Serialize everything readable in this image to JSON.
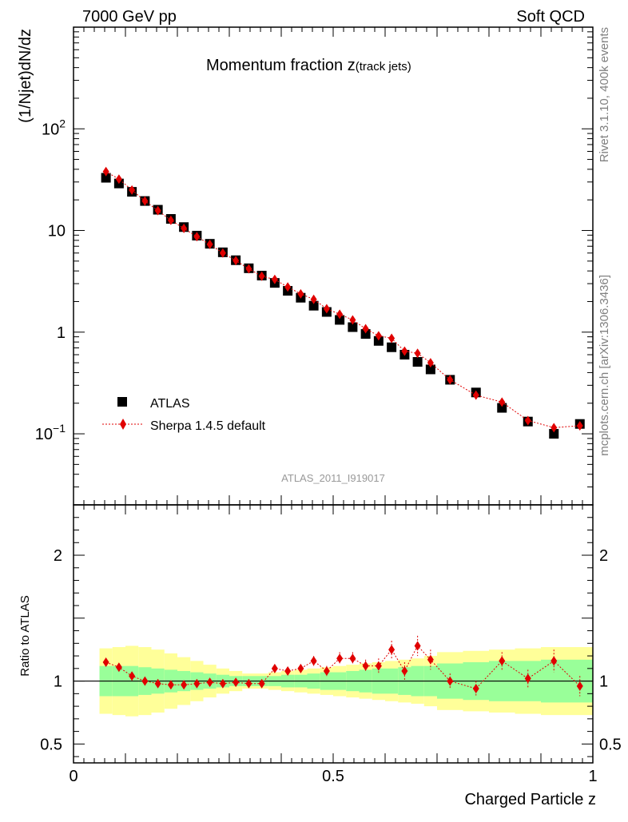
{
  "header": {
    "left": "7000 GeV pp",
    "right": "Soft QCD"
  },
  "side": {
    "rivet": "Rivet 3.1.10,  400k events",
    "mcplots": "mcplots.cern.ch [arXiv:1306.3436]"
  },
  "colors": {
    "data": "#000000",
    "mc": "#e00000",
    "band_outer": "#ffff99",
    "band_inner": "#99ff99",
    "axis": "#000000",
    "watermark": "#999999",
    "side_text": "#808080"
  },
  "chart_data": [
    {
      "type": "scatter",
      "name": "main",
      "title_main": "Momentum fraction z",
      "title_sub": "(track jets)",
      "ylabel": "(1/Njet)dN/dz",
      "yscale": "log",
      "ylim": [
        0.02,
        1000
      ],
      "xlim": [
        0,
        1
      ],
      "y_ticks": [
        {
          "value": 0.1,
          "base": "10",
          "exp": "−1"
        },
        {
          "value": 1,
          "base": "1",
          "exp": ""
        },
        {
          "value": 10,
          "base": "10",
          "exp": ""
        },
        {
          "value": 100,
          "base": "10",
          "exp": "2"
        }
      ],
      "watermark": "ATLAS_2011_I919017",
      "legend": [
        {
          "label": "ATLAS",
          "marker": "square"
        },
        {
          "label": "Sherpa 1.4.5 default",
          "marker": "diamond"
        }
      ],
      "x": [
        0.0625,
        0.0875,
        0.1125,
        0.1375,
        0.1625,
        0.1875,
        0.2125,
        0.2375,
        0.2625,
        0.2875,
        0.3125,
        0.3375,
        0.3625,
        0.3875,
        0.4125,
        0.4375,
        0.4625,
        0.4875,
        0.5125,
        0.5375,
        0.5625,
        0.5875,
        0.6125,
        0.6375,
        0.6625,
        0.6875,
        0.725,
        0.775,
        0.825,
        0.875,
        0.925,
        0.975
      ],
      "series": [
        {
          "name": "ATLAS",
          "values": [
            33,
            29,
            24,
            19.5,
            16,
            13,
            10.8,
            8.9,
            7.4,
            6.1,
            5.1,
            4.25,
            3.6,
            3.05,
            2.55,
            2.18,
            1.82,
            1.58,
            1.32,
            1.12,
            0.96,
            0.82,
            0.71,
            0.6,
            0.51,
            0.43,
            0.34,
            0.255,
            0.18,
            0.132,
            0.1,
            0.125
          ]
        },
        {
          "name": "Sherpa 1.4.5 default",
          "values": [
            38,
            32,
            25,
            19.5,
            15.7,
            12.6,
            10.5,
            8.7,
            7.3,
            6.0,
            5.05,
            4.2,
            3.55,
            3.3,
            2.78,
            2.38,
            2.1,
            1.7,
            1.5,
            1.32,
            1.08,
            0.92,
            0.87,
            0.65,
            0.62,
            0.5,
            0.34,
            0.24,
            0.205,
            0.135,
            0.115,
            0.12
          ],
          "errors": [
            0.5,
            0.4,
            0.3,
            0.25,
            0.2,
            0.15,
            0.13,
            0.1,
            0.09,
            0.08,
            0.07,
            0.06,
            0.05,
            0.05,
            0.04,
            0.04,
            0.04,
            0.03,
            0.03,
            0.03,
            0.03,
            0.02,
            0.02,
            0.02,
            0.02,
            0.02,
            0.01,
            0.015,
            0.012,
            0.01,
            0.01,
            0.01
          ]
        }
      ]
    },
    {
      "type": "scatter",
      "name": "ratio",
      "ylabel": "Ratio to ATLAS",
      "xlabel": "Charged Particle z",
      "ylim": [
        0.35,
        2.4
      ],
      "xlim": [
        0,
        1
      ],
      "y_ticks": [
        {
          "value": 0.5,
          "label": "0.5"
        },
        {
          "value": 1,
          "label": "1"
        },
        {
          "value": 2,
          "label": "2"
        }
      ],
      "x_ticks": [
        {
          "value": 0,
          "label": "0"
        },
        {
          "value": 0.5,
          "label": "0.5"
        },
        {
          "value": 1,
          "label": "1"
        }
      ],
      "bin_edges": [
        0.05,
        0.075,
        0.1,
        0.125,
        0.15,
        0.175,
        0.2,
        0.225,
        0.25,
        0.275,
        0.3,
        0.325,
        0.35,
        0.375,
        0.4,
        0.425,
        0.45,
        0.475,
        0.5,
        0.525,
        0.55,
        0.575,
        0.6,
        0.625,
        0.65,
        0.675,
        0.7,
        0.75,
        0.8,
        0.85,
        0.9,
        0.95,
        1.0
      ],
      "band_inner": [
        0.12,
        0.12,
        0.12,
        0.11,
        0.1,
        0.09,
        0.08,
        0.07,
        0.06,
        0.05,
        0.04,
        0.04,
        0.04,
        0.04,
        0.05,
        0.05,
        0.06,
        0.07,
        0.07,
        0.08,
        0.09,
        0.1,
        0.1,
        0.11,
        0.12,
        0.12,
        0.14,
        0.15,
        0.16,
        0.16,
        0.17,
        0.17
      ],
      "band_outer": [
        0.26,
        0.27,
        0.28,
        0.27,
        0.25,
        0.22,
        0.19,
        0.16,
        0.13,
        0.1,
        0.08,
        0.06,
        0.06,
        0.07,
        0.08,
        0.09,
        0.1,
        0.11,
        0.12,
        0.13,
        0.14,
        0.15,
        0.16,
        0.17,
        0.18,
        0.2,
        0.23,
        0.24,
        0.25,
        0.26,
        0.27,
        0.27
      ],
      "series": [
        {
          "name": "Sherpa 1.4.5 default",
          "values": [
            1.15,
            1.11,
            1.04,
            1.0,
            0.98,
            0.97,
            0.97,
            0.98,
            0.99,
            0.98,
            0.99,
            0.98,
            0.98,
            1.1,
            1.08,
            1.1,
            1.16,
            1.08,
            1.18,
            1.18,
            1.12,
            1.12,
            1.25,
            1.08,
            1.28,
            1.17,
            1.0,
            0.94,
            1.16,
            1.02,
            1.16,
            0.96
          ],
          "errors": [
            0.02,
            0.02,
            0.02,
            0.02,
            0.02,
            0.02,
            0.02,
            0.02,
            0.02,
            0.02,
            0.02,
            0.02,
            0.02,
            0.03,
            0.03,
            0.03,
            0.04,
            0.04,
            0.05,
            0.05,
            0.05,
            0.06,
            0.07,
            0.07,
            0.08,
            0.08,
            0.06,
            0.06,
            0.07,
            0.07,
            0.09,
            0.08
          ]
        }
      ]
    }
  ]
}
